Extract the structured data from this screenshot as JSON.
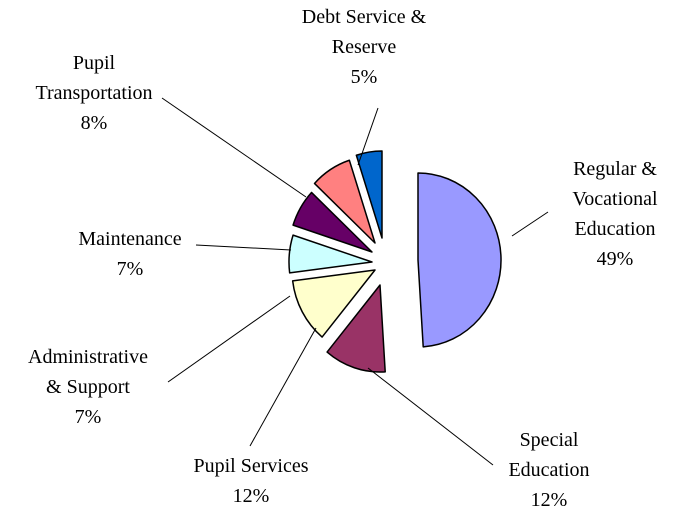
{
  "chart_data": {
    "type": "pie",
    "exploded": true,
    "slices": [
      {
        "label_lines": [
          "Regular &",
          "Vocational",
          "Education"
        ],
        "value_text": "49%",
        "value": 49,
        "color": "#9999ff"
      },
      {
        "label_lines": [
          "Special",
          "Education"
        ],
        "value_text": "12%",
        "value": 12,
        "color": "#993366"
      },
      {
        "label_lines": [
          "Pupil Services"
        ],
        "value_text": "12%",
        "value": 12,
        "color": "#ffffcc"
      },
      {
        "label_lines": [
          "Administrative",
          "& Support"
        ],
        "value_text": "7%",
        "value": 7,
        "color": "#ccffff"
      },
      {
        "label_lines": [
          "Maintenance"
        ],
        "value_text": "7%",
        "value": 7,
        "color": "#660066"
      },
      {
        "label_lines": [
          "Pupil",
          "Transportation"
        ],
        "value_text": "8%",
        "value": 8,
        "color": "#ff8080"
      },
      {
        "label_lines": [
          "Debt Service &",
          "Reserve"
        ],
        "value_text": "5%",
        "value": 5,
        "color": "#0066cc"
      }
    ]
  }
}
